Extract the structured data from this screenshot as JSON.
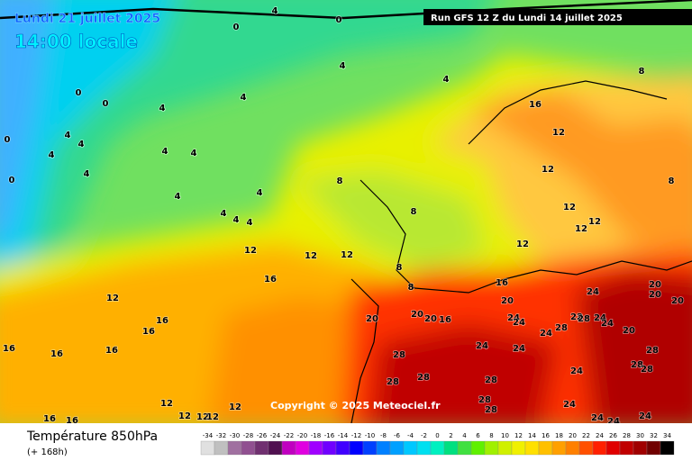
{
  "header": {
    "date": "Lundi 21 juillet 2025",
    "time": "14:00 locale",
    "run": "Run GFS 12 Z du Lundi 14 juillet 2025"
  },
  "copyright": "Copyright © 2025 Meteociel.fr",
  "legend": {
    "title": "Température 850hPa",
    "lead": "(+ 168h)",
    "values": [
      -34,
      -32,
      -30,
      -28,
      -26,
      -24,
      -22,
      -20,
      -18,
      -16,
      -14,
      -12,
      -10,
      -8,
      -6,
      -4,
      -2,
      0,
      2,
      4,
      6,
      8,
      10,
      12,
      14,
      16,
      18,
      20,
      22,
      24,
      26,
      28,
      30,
      32,
      34
    ],
    "colors": [
      "#e0e0e0",
      "#c0c0c0",
      "#a070a0",
      "#905090",
      "#703070",
      "#501050",
      "#c000c0",
      "#e000e0",
      "#a000ff",
      "#7000ff",
      "#4000ff",
      "#0000ff",
      "#0040ff",
      "#0080ff",
      "#00a0ff",
      "#00c8ff",
      "#00e0f0",
      "#00f0c0",
      "#00e080",
      "#40e040",
      "#60f000",
      "#a0f000",
      "#d0f000",
      "#f0f000",
      "#ffe000",
      "#ffc000",
      "#ffa000",
      "#ff8000",
      "#ff5000",
      "#ff2000",
      "#e00000",
      "#c00000",
      "#a00000",
      "#700000",
      "#000000"
    ]
  },
  "contour_labels": [
    4,
    0,
    0,
    4,
    4,
    8,
    0,
    0,
    4,
    4,
    4,
    4,
    4,
    4,
    4,
    0,
    4,
    0,
    4,
    4,
    4,
    4,
    4,
    8,
    8,
    8,
    16,
    12,
    12,
    12,
    12,
    12,
    12,
    12,
    12,
    12,
    8,
    8,
    16,
    12,
    16,
    16,
    16,
    16,
    16,
    20,
    20,
    20,
    16,
    16,
    20,
    24,
    24,
    24,
    20,
    20,
    20,
    24,
    28,
    22,
    28,
    24,
    24,
    20,
    24,
    24,
    28,
    28,
    28,
    28,
    28,
    28,
    28,
    24,
    28,
    28,
    24,
    12,
    12,
    12,
    12,
    12,
    16,
    16,
    24,
    24,
    24
  ]
}
